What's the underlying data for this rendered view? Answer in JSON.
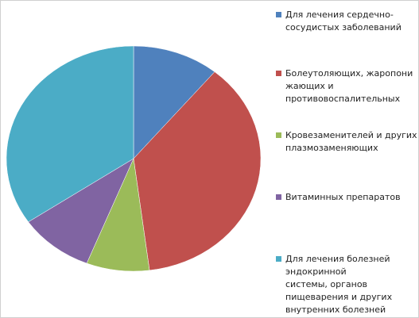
{
  "chart_data": {
    "type": "pie",
    "categories": [
      "Для лечения сердечно-\nсосудистых заболеваний",
      "Болеутоляющих, жаропони\nжающих и\nпротивовоспалительных",
      "Кровезаменителей и других\nплазмозаменяющих",
      "Витаминных препаратов",
      "Для лечения болезней\nэндокринной\nсистемы, органов\nпищеварения и других\nвнутренних болезней"
    ],
    "values": [
      11,
      37,
      8,
      9.5,
      34.5
    ],
    "colors": [
      "#4f81bd",
      "#c0504d",
      "#9bbb59",
      "#8064a2",
      "#4bacc6"
    ],
    "legend": "right"
  }
}
